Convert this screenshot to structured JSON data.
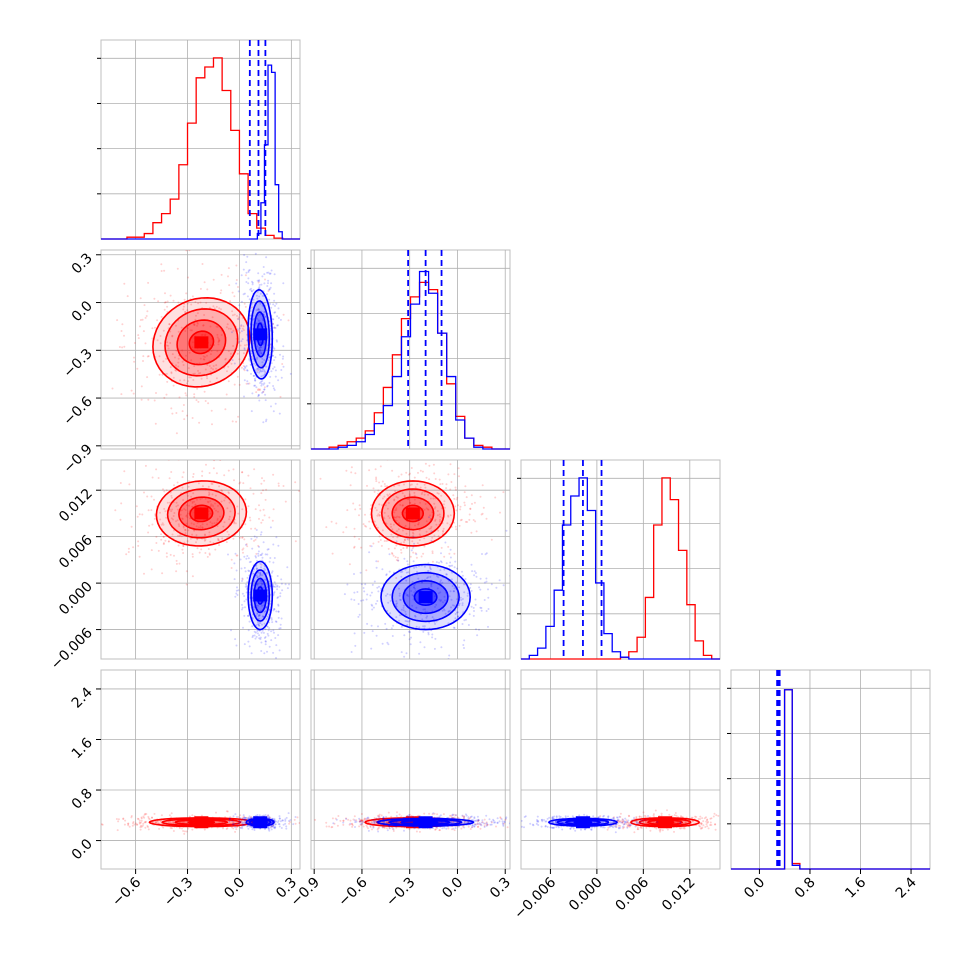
{
  "chart_data": {
    "type": "scatter",
    "subtype": "corner-plot",
    "title": "",
    "grid": true,
    "legend": "none",
    "colors": {
      "red": "#ff0000",
      "blue": "#0000ff",
      "grid": "#b0b0b0",
      "frame": "#bfbfbf"
    },
    "parameters": [
      {
        "range": [
          -0.8,
          0.35
        ],
        "ticks": [
          "−0.6",
          "−0.3",
          "0.0",
          "0.3"
        ],
        "tick_values": [
          -0.6,
          -0.3,
          0.0,
          0.3
        ]
      },
      {
        "range": [
          -0.92,
          0.33
        ],
        "ticks": [
          "−0.9",
          "−0.6",
          "−0.3",
          "0.0",
          "0.3"
        ],
        "tick_values": [
          -0.9,
          -0.6,
          -0.3,
          0.0,
          0.3
        ]
      },
      {
        "range": [
          -0.0098,
          0.0159
        ],
        "ticks": [
          "−0.006",
          "0.000",
          "0.006",
          "0.012"
        ],
        "tick_values": [
          -0.006,
          0.0,
          0.006,
          0.012
        ]
      },
      {
        "range": [
          -0.45,
          2.7
        ],
        "ticks": [
          "0.0",
          "0.8",
          "1.6",
          "2.4"
        ],
        "tick_values": [
          0.0,
          0.8,
          1.6,
          2.4
        ]
      }
    ],
    "series": [
      {
        "color": "red",
        "hist": [
          {
            "edges_range": [
              -0.8,
              0.35
            ],
            "counts": [
              0,
              0,
              0,
              1,
              1,
              3,
              9,
              14,
              22,
              41,
              64,
              89,
              95,
              100,
              82,
              60,
              36,
              14,
              6,
              2,
              0.5,
              0,
              0
            ]
          },
          {
            "edges_range": [
              -0.92,
              0.33
            ],
            "counts": [
              0,
              0,
              1,
              2,
              4,
              6,
              10,
              20,
              34,
              52,
              72,
              84,
              92,
              88,
              64,
              36,
              18,
              6,
              2,
              1,
              0,
              0
            ]
          },
          {
            "edges_range": [
              -0.0098,
              0.0159
            ],
            "counts": [
              0,
              0,
              0,
              0,
              0,
              0,
              0,
              0,
              0,
              0,
              0,
              0,
              1,
              4,
              12,
              34,
              74,
              100,
              88,
              60,
              30,
              10,
              2,
              0
            ]
          },
          {
            "edges_range": [
              -0.45,
              2.7
            ],
            "counts": [
              0,
              0,
              0,
              0,
              0,
              0,
              0,
              99,
              3,
              0,
              0,
              0,
              0,
              0,
              0,
              0,
              0,
              0,
              0,
              0,
              0,
              0,
              0,
              0,
              0,
              0
            ]
          }
        ],
        "clusters": {
          "0_1": {
            "center": [
              -0.22,
              -0.25
            ],
            "spread": [
              0.14,
              0.14
            ],
            "rho": -0.1
          },
          "0_2": {
            "center": [
              -0.22,
              0.009
            ],
            "spread": [
              0.13,
              0.0021
            ],
            "rho": -0.05
          },
          "0_3": {
            "center": [
              -0.22,
              0.29
            ],
            "spread": [
              0.15,
              0.035
            ],
            "rho": 0.0
          },
          "1_2": {
            "center": [
              -0.28,
              0.009
            ],
            "spread": [
              0.13,
              0.0021
            ],
            "rho": 0.0
          },
          "1_3": {
            "center": [
              -0.28,
              0.29
            ],
            "spread": [
              0.15,
              0.035
            ],
            "rho": 0.0
          },
          "2_3": {
            "center": [
              0.0088,
              0.29
            ],
            "spread": [
              0.0022,
              0.035
            ],
            "rho": 0.0
          }
        }
      },
      {
        "color": "blue",
        "hist": [
          {
            "edges_range": [
              -0.8,
              0.35
            ],
            "counts": [
              0,
              0,
              0,
              0,
              0,
              0,
              0,
              0,
              0,
              0,
              0,
              0,
              0,
              0,
              0,
              0,
              0,
              0,
              0,
              0,
              0,
              0,
              0,
              0,
              0,
              0,
              0,
              0,
              0,
              0,
              0,
              0,
              0,
              0,
              0,
              0,
              0,
              0,
              0,
              0,
              0,
              0,
              0,
              0,
              3,
              20,
              52,
              96,
              92,
              30,
              4,
              0,
              0,
              0,
              0,
              0
            ]
          },
          {
            "edges_range": [
              -0.92,
              0.33
            ],
            "counts": [
              0,
              0,
              0,
              1,
              2,
              4,
              8,
              14,
              24,
              40,
              62,
              80,
              98,
              86,
              64,
              40,
              16,
              6,
              1,
              0,
              0,
              0
            ]
          },
          {
            "edges_range": [
              -0.0098,
              0.0159
            ],
            "counts": [
              0,
              2,
              6,
              18,
              38,
              74,
              90,
              100,
              82,
              42,
              14,
              4,
              1,
              0,
              0,
              0,
              0,
              0,
              0,
              0,
              0,
              0,
              0,
              0
            ]
          },
          {
            "edges_range": [
              -0.45,
              2.7
            ],
            "counts": [
              0,
              0,
              0,
              0,
              0,
              0,
              0,
              99,
              2,
              0,
              0,
              0,
              0,
              0,
              0,
              0,
              0,
              0,
              0,
              0,
              0,
              0,
              0,
              0,
              0,
              0
            ]
          }
        ],
        "quantiles": [
          [
            0.06,
            0.11,
            0.15
          ],
          [
            -0.31,
            -0.2,
            -0.1
          ],
          [
            -0.0043,
            -0.0018,
            0.0006
          ],
          [
            0.28,
            0.3,
            0.32
          ]
        ],
        "clusters": {
          "0_1": {
            "center": [
              0.12,
              -0.2
            ],
            "spread": [
              0.035,
              0.14
            ],
            "rho": 0.1
          },
          "0_2": {
            "center": [
              0.12,
              -0.0016
            ],
            "spread": [
              0.035,
              0.0022
            ],
            "rho": 0.0
          },
          "0_3": {
            "center": [
              0.12,
              0.29
            ],
            "spread": [
              0.04,
              0.03
            ],
            "rho": 0.0
          },
          "1_2": {
            "center": [
              -0.2,
              -0.0018
            ],
            "spread": [
              0.14,
              0.0021
            ],
            "rho": 0.0
          },
          "1_3": {
            "center": [
              -0.2,
              0.29
            ],
            "spread": [
              0.15,
              0.03
            ],
            "rho": 0.0
          },
          "2_3": {
            "center": [
              -0.0018,
              0.29
            ],
            "spread": [
              0.0022,
              0.03
            ],
            "rho": 0.0
          }
        }
      }
    ]
  }
}
